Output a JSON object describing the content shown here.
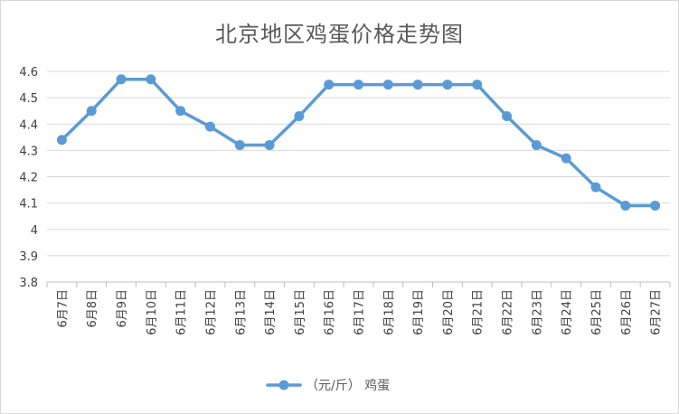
{
  "chart_data": {
    "type": "line",
    "title": "北京地区鸡蛋价格走势图",
    "categories": [
      "6月7日",
      "6月8日",
      "6月9日",
      "6月10日",
      "6月11日",
      "6月12日",
      "6月13日",
      "6月14日",
      "6月15日",
      "6月16日",
      "6月17日",
      "6月18日",
      "6月19日",
      "6月20日",
      "6月21日",
      "6月22日",
      "6月23日",
      "6月24日",
      "6月25日",
      "6月26日",
      "6月27日"
    ],
    "series": [
      {
        "name": "（元/斤） 鸡蛋",
        "color": "#5b9bd5",
        "values": [
          4.34,
          4.45,
          4.57,
          4.57,
          4.45,
          4.39,
          4.32,
          4.32,
          4.43,
          4.55,
          4.55,
          4.55,
          4.55,
          4.55,
          4.55,
          4.43,
          4.32,
          4.27,
          4.16,
          4.09,
          4.09
        ]
      }
    ],
    "ylim": [
      3.8,
      4.6
    ],
    "yticks": [
      "3.8",
      "3.9",
      "4",
      "4.1",
      "4.2",
      "4.3",
      "4.4",
      "4.5",
      "4.6"
    ],
    "grid": true,
    "legend": "bottom"
  }
}
